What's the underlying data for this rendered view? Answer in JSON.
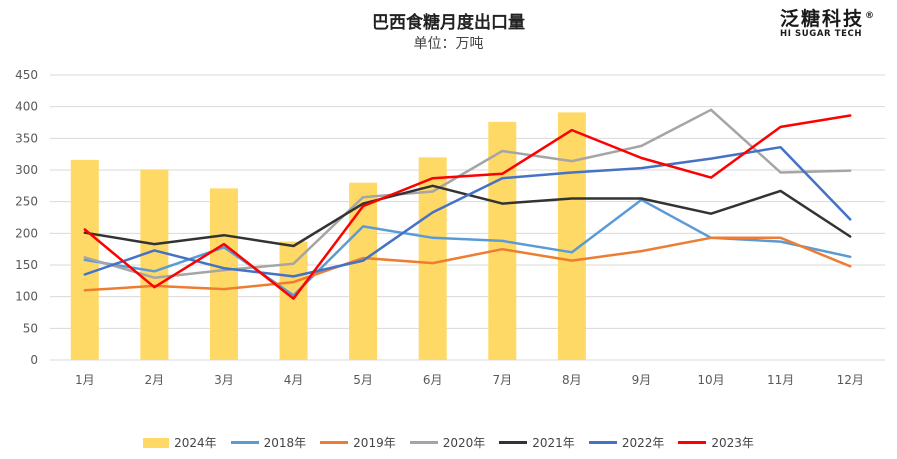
{
  "chart_data": {
    "type": "bar+line",
    "title": "巴西食糖月度出口量",
    "subtitle": "单位：万吨",
    "categories": [
      "1月",
      "2月",
      "3月",
      "4月",
      "5月",
      "6月",
      "7月",
      "8月",
      "9月",
      "10月",
      "11月",
      "12月"
    ],
    "ylim": [
      0,
      450
    ],
    "yticks": [
      0,
      50,
      100,
      150,
      200,
      250,
      300,
      350,
      400,
      450
    ],
    "grid": true,
    "legend_position": "bottom",
    "bar_series": {
      "name": "2024年",
      "color": "#FFD966",
      "values": [
        316,
        301,
        271,
        187,
        280,
        320,
        376,
        391
      ]
    },
    "series": [
      {
        "name": "2018年",
        "color": "#5B9BD5",
        "values": [
          158,
          140,
          178,
          102,
          211,
          193,
          188,
          170,
          253,
          193,
          187,
          163
        ]
      },
      {
        "name": "2019年",
        "color": "#ED7D31",
        "values": [
          110,
          117,
          112,
          123,
          161,
          153,
          175,
          157,
          172,
          193,
          193,
          148
        ]
      },
      {
        "name": "2020年",
        "color": "#A5A5A5",
        "values": [
          162,
          130,
          142,
          152,
          257,
          266,
          330,
          314,
          338,
          395,
          296,
          299
        ]
      },
      {
        "name": "2021年",
        "color": "#333333",
        "values": [
          201,
          183,
          197,
          180,
          247,
          275,
          247,
          255,
          255,
          231,
          267,
          195
        ]
      },
      {
        "name": "2022年",
        "color": "#4472C4",
        "values": [
          135,
          173,
          145,
          132,
          157,
          233,
          287,
          296,
          303,
          318,
          336,
          222
        ]
      },
      {
        "name": "2023年",
        "color": "#FF0000",
        "values": [
          206,
          115,
          183,
          97,
          243,
          287,
          294,
          363,
          319,
          288,
          368,
          386
        ]
      }
    ]
  },
  "logo": {
    "name_cn": "泛糖科技",
    "name_en": "HI SUGAR TECH",
    "registered": "®"
  }
}
